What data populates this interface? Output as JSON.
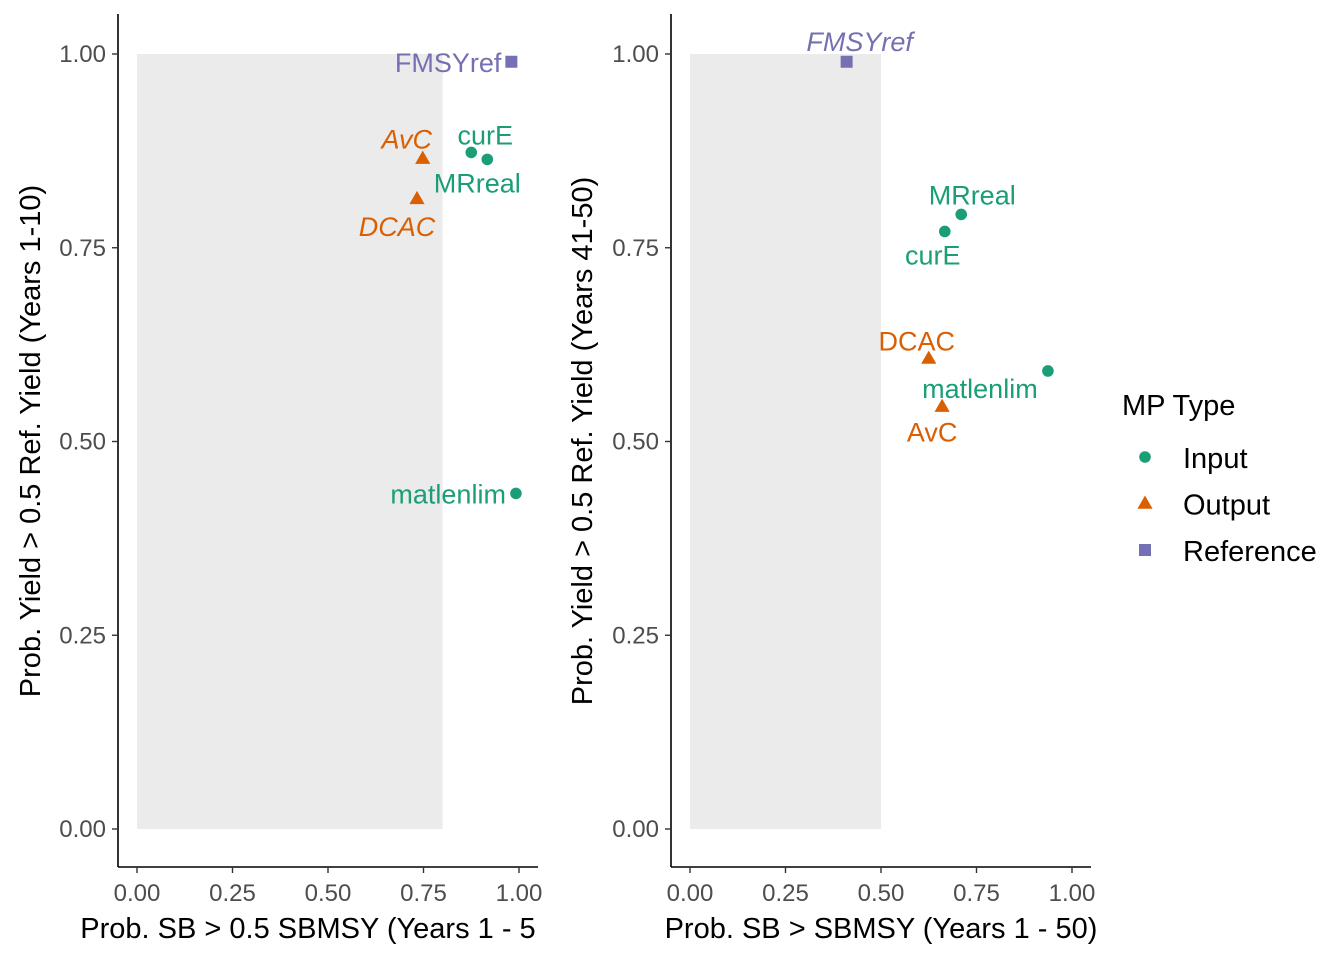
{
  "colors": {
    "Input": "#1b9e77",
    "Output": "#d95f02",
    "Reference": "#7570b3",
    "band": "#ebebeb",
    "axis": "#000000",
    "tick_text": "#4d4d4d"
  },
  "legend": {
    "title": "MP Type",
    "position": "right",
    "entries": [
      {
        "name": "Input",
        "shape": "circle"
      },
      {
        "name": "Output",
        "shape": "triangle"
      },
      {
        "name": "Reference",
        "shape": "square"
      }
    ]
  },
  "chart_data": [
    {
      "type": "scatter",
      "xlabel": "Prob. SB > 0.5 SBMSY (Years 1 - 5",
      "ylabel": "Prob. Yield > 0.5 Ref. Yield (Years 1-10)",
      "xlim": [
        0,
        1
      ],
      "ylim": [
        0,
        1
      ],
      "x_ticks": [
        "0.00",
        "0.25",
        "0.50",
        "0.75",
        "1.00"
      ],
      "y_ticks": [
        "0.00",
        "0.25",
        "0.50",
        "0.75",
        "1.00"
      ],
      "shaded_region": {
        "x": [
          0,
          0.8
        ],
        "y": [
          0,
          1
        ]
      },
      "grid": false,
      "points": [
        {
          "label": "curE",
          "type": "Input",
          "x": 0.875,
          "y": 0.873,
          "label_pos": "above",
          "italic": false
        },
        {
          "label": "MRreal",
          "type": "Input",
          "x": 0.917,
          "y": 0.864,
          "label_pos": "below",
          "italic": false
        },
        {
          "label": "matlenlim",
          "type": "Input",
          "x": 0.992,
          "y": 0.433,
          "label_pos": "left",
          "italic": false
        },
        {
          "label": "AvC",
          "type": "Output",
          "x": 0.748,
          "y": 0.865,
          "label_pos": "above-left",
          "italic": true
        },
        {
          "label": "DCAC",
          "type": "Output",
          "x": 0.733,
          "y": 0.813,
          "label_pos": "below-left",
          "italic": true
        },
        {
          "label": "FMSYref",
          "type": "Reference",
          "x": 0.98,
          "y": 0.99,
          "label_pos": "left",
          "italic": false
        }
      ]
    },
    {
      "type": "scatter",
      "xlabel": "Prob. SB > SBMSY (Years 1 - 50)",
      "ylabel": "Prob. Yield > 0.5 Ref. Yield (Years 41-50)",
      "xlim": [
        0,
        1
      ],
      "ylim": [
        0,
        1
      ],
      "x_ticks": [
        "0.00",
        "0.25",
        "0.50",
        "0.75",
        "1.00"
      ],
      "y_ticks": [
        "0.00",
        "0.25",
        "0.50",
        "0.75",
        "1.00"
      ],
      "shaded_region": {
        "x": [
          0,
          0.5
        ],
        "y": [
          0,
          1
        ]
      },
      "grid": false,
      "points": [
        {
          "label": "MRreal",
          "type": "Input",
          "x": 0.71,
          "y": 0.793,
          "label_pos": "above-left",
          "italic": false
        },
        {
          "label": "curE",
          "type": "Input",
          "x": 0.667,
          "y": 0.771,
          "label_pos": "below-left",
          "italic": false
        },
        {
          "label": "matlenlim",
          "type": "Input",
          "x": 0.937,
          "y": 0.591,
          "label_pos": "below-left",
          "italic": false
        },
        {
          "label": "DCAC",
          "type": "Output",
          "x": 0.625,
          "y": 0.607,
          "label_pos": "above-left",
          "italic": false
        },
        {
          "label": "AvC",
          "type": "Output",
          "x": 0.66,
          "y": 0.545,
          "label_pos": "below-left",
          "italic": false
        },
        {
          "label": "FMSYref",
          "type": "Reference",
          "x": 0.41,
          "y": 0.99,
          "label_pos": "above",
          "italic": true
        }
      ]
    }
  ]
}
